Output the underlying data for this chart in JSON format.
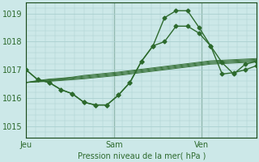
{
  "title": "Pression niveau de la mer( hPa )",
  "bg_color": "#cce8e8",
  "grid_color": "#aacfcf",
  "line_color": "#2d6a2d",
  "dark_line_color": "#1a4a1a",
  "ylim": [
    1014.6,
    1019.4
  ],
  "yticks": [
    1015,
    1016,
    1017,
    1018,
    1019
  ],
  "xtick_labels": [
    "Jeu",
    "Sam",
    "Ven"
  ],
  "xtick_positions": [
    0.0,
    0.381,
    0.762
  ],
  "vline_positions": [
    0.0,
    0.381,
    0.762
  ],
  "n_points": 21,
  "ensemble_lines": [
    [
      1016.55,
      1016.57,
      1016.59,
      1016.62,
      1016.65,
      1016.68,
      1016.72,
      1016.76,
      1016.8,
      1016.85,
      1016.9,
      1016.95,
      1017.0,
      1017.05,
      1017.1,
      1017.15,
      1017.2,
      1017.22,
      1017.24,
      1017.26,
      1017.28
    ],
    [
      1016.55,
      1016.58,
      1016.61,
      1016.64,
      1016.67,
      1016.71,
      1016.75,
      1016.79,
      1016.83,
      1016.88,
      1016.93,
      1016.98,
      1017.03,
      1017.08,
      1017.13,
      1017.18,
      1017.23,
      1017.25,
      1017.27,
      1017.29,
      1017.31
    ],
    [
      1016.55,
      1016.59,
      1016.63,
      1016.66,
      1016.7,
      1016.74,
      1016.78,
      1016.82,
      1016.86,
      1016.91,
      1016.96,
      1017.01,
      1017.06,
      1017.11,
      1017.16,
      1017.21,
      1017.26,
      1017.28,
      1017.3,
      1017.32,
      1017.34
    ],
    [
      1016.55,
      1016.6,
      1016.65,
      1016.68,
      1016.72,
      1016.77,
      1016.81,
      1016.85,
      1016.89,
      1016.94,
      1016.99,
      1017.04,
      1017.09,
      1017.14,
      1017.19,
      1017.24,
      1017.29,
      1017.31,
      1017.33,
      1017.35,
      1017.37
    ],
    [
      1016.55,
      1016.62,
      1016.67,
      1016.7,
      1016.74,
      1016.8,
      1016.84,
      1016.88,
      1016.92,
      1016.97,
      1017.02,
      1017.07,
      1017.12,
      1017.17,
      1017.22,
      1017.27,
      1017.32,
      1017.34,
      1017.36,
      1017.38,
      1017.4
    ]
  ],
  "main_series": [
    1017.0,
    1016.65,
    1016.55,
    1016.3,
    1016.15,
    1015.85,
    1015.75,
    1015.75,
    1016.1,
    1016.55,
    1017.3,
    1017.85,
    1018.85,
    1019.1,
    1019.1,
    1018.5,
    1017.85,
    1016.85,
    1016.9,
    1017.0,
    1017.15
  ],
  "second_series": [
    1017.0,
    1016.65,
    1016.55,
    1016.3,
    1016.15,
    1015.85,
    1015.75,
    1015.75,
    1016.1,
    1016.55,
    1017.3,
    1017.85,
    1018.0,
    1018.55,
    1018.55,
    1018.3,
    1017.85,
    1017.25,
    1016.85,
    1017.2,
    1017.3
  ]
}
